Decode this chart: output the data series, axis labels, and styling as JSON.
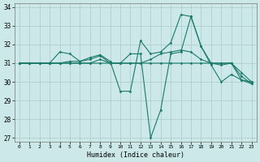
{
  "xlabel": "Humidex (Indice chaleur)",
  "ylabel": "",
  "background_color": "#cce8e8",
  "grid_color": "#aacccc",
  "line_color": "#1a7a6a",
  "xlim": [
    -0.5,
    23.5
  ],
  "ylim": [
    26.8,
    34.2
  ],
  "xticks": [
    0,
    1,
    2,
    3,
    4,
    5,
    6,
    7,
    8,
    9,
    10,
    11,
    12,
    13,
    14,
    15,
    16,
    17,
    18,
    19,
    20,
    21,
    22,
    23
  ],
  "yticks": [
    27,
    28,
    29,
    30,
    31,
    32,
    33,
    34
  ],
  "series": [
    [
      31.0,
      31.0,
      31.0,
      31.0,
      31.6,
      31.5,
      31.1,
      31.3,
      31.45,
      31.1,
      29.5,
      29.5,
      32.2,
      31.5,
      31.6,
      32.1,
      33.6,
      33.5,
      31.9,
      31.0,
      31.0,
      31.0,
      30.3,
      29.9
    ],
    [
      31.0,
      31.0,
      31.0,
      31.0,
      31.0,
      31.0,
      31.0,
      31.0,
      31.2,
      31.0,
      31.0,
      31.5,
      31.5,
      27.0,
      28.5,
      31.5,
      31.6,
      33.5,
      31.9,
      30.9,
      30.0,
      30.4,
      30.1,
      29.9
    ],
    [
      31.0,
      31.0,
      31.0,
      31.0,
      31.0,
      31.1,
      31.1,
      31.2,
      31.4,
      31.0,
      31.0,
      31.0,
      31.0,
      31.2,
      31.5,
      31.6,
      31.7,
      31.6,
      31.2,
      31.0,
      31.0,
      31.0,
      30.5,
      30.0
    ],
    [
      31.0,
      31.0,
      31.0,
      31.0,
      31.0,
      31.0,
      31.0,
      31.0,
      31.0,
      31.0,
      31.0,
      31.0,
      31.0,
      31.0,
      31.0,
      31.0,
      31.0,
      31.0,
      31.0,
      31.0,
      30.9,
      31.0,
      30.1,
      30.0
    ]
  ]
}
